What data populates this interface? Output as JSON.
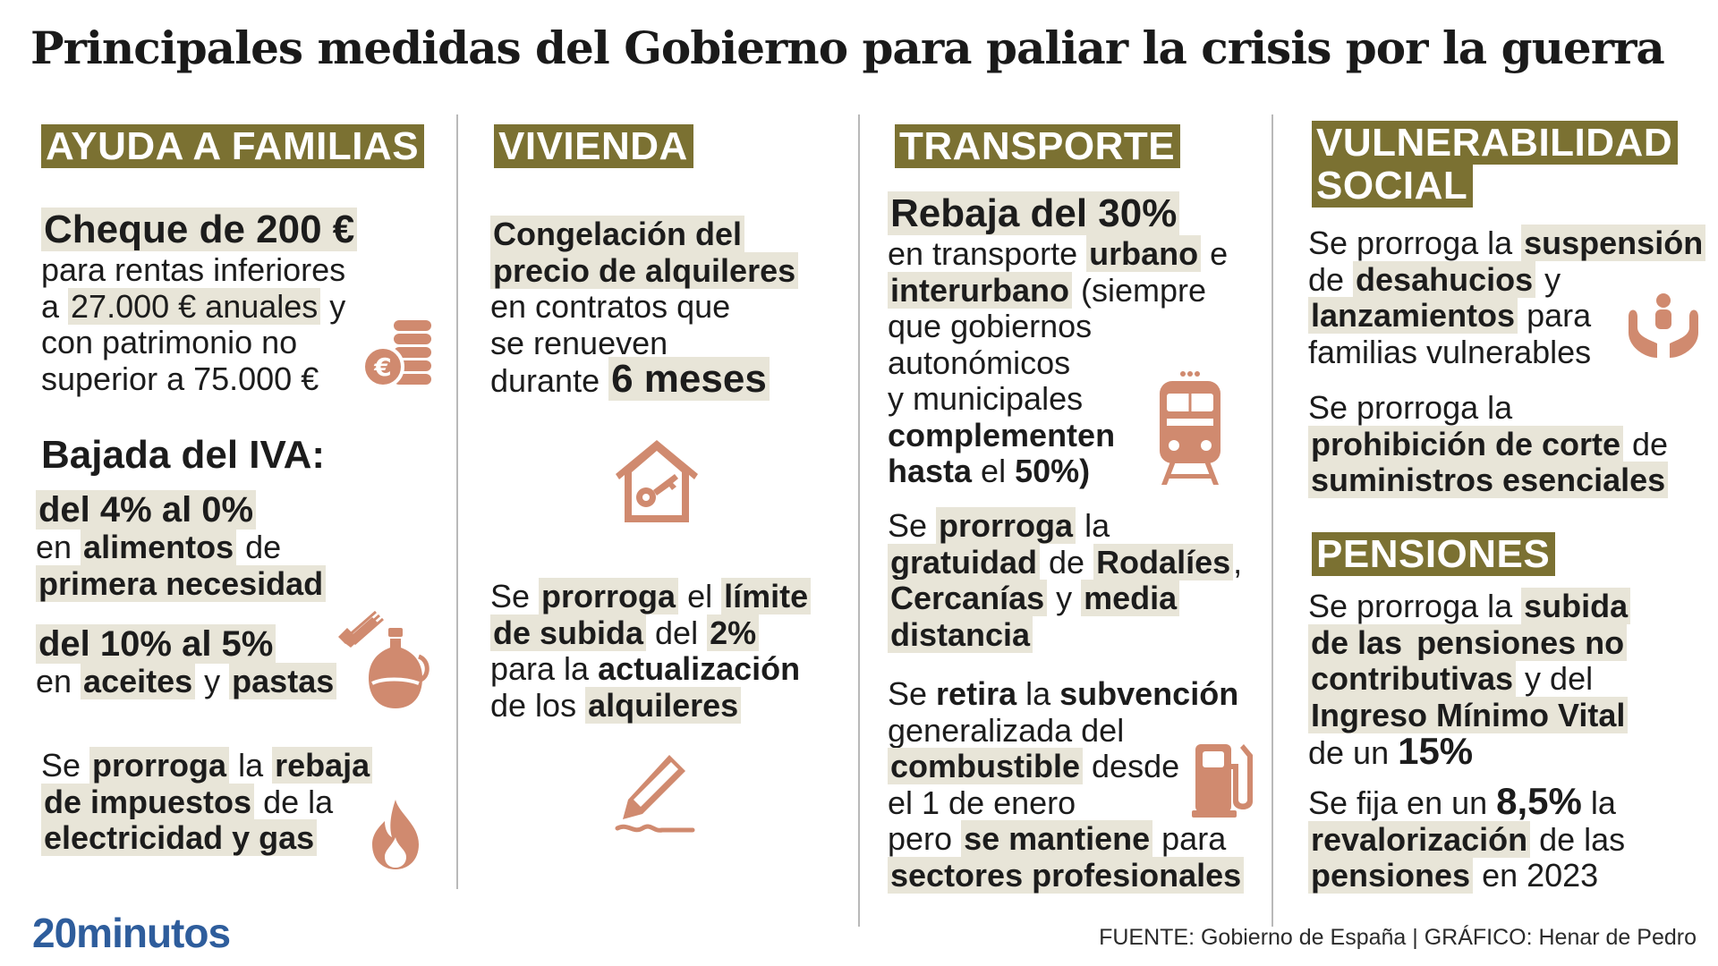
{
  "title": "Principales medidas del Gobierno para paliar la crisis por la guerra",
  "sections": {
    "familias": {
      "header": "AYUDA A FAMILIAS",
      "cheque": {
        "heading": "Cheque de 200 €",
        "l1": "para rentas inferiores",
        "l2a": "a ",
        "l2b": "27.000 € anuales",
        "l2c": " y",
        "l3": "con patrimonio no",
        "l4": "superior a 75.000 €"
      },
      "iva_heading": "Bajada del IVA:",
      "iva1": {
        "range": "del 4% al 0%",
        "l2a": "en ",
        "l2b": "alimentos",
        "l2c": " de",
        "l3": "primera necesidad"
      },
      "iva2": {
        "range": "del 10% al 5%",
        "l2a": "en ",
        "l2b": "aceites",
        "l2c": " y ",
        "l2d": "pastas"
      },
      "energia": {
        "l1a": "Se ",
        "l1b": "prorroga",
        "l1c": " la ",
        "l1d": "rebaja",
        "l2a": "de impuestos",
        "l2b": " de la",
        "l3": "electricidad y gas"
      }
    },
    "vivienda": {
      "header": "VIVIENDA",
      "congelacion": {
        "l1": "Congelación del",
        "l2": "precio de alquileres",
        "l3": "en contratos que",
        "l4": "se renueven",
        "l5a": "durante ",
        "l5b": "6 meses"
      },
      "limite": {
        "l1a": "Se ",
        "l1b": "prorroga",
        "l1c": " el ",
        "l1d": "límite",
        "l2a": "de subida",
        "l2b": " del ",
        "l2c": "2%",
        "l3a": "para la ",
        "l3b": "actualización",
        "l4a": "de los ",
        "l4b": "alquileres"
      }
    },
    "transporte": {
      "header": "TRANSPORTE",
      "rebaja": {
        "heading": "Rebaja del 30%",
        "l1a": "en transporte ",
        "l1b": "urbano",
        "l1c": " e",
        "l2a": "interurbano",
        "l2b": " (siempre",
        "l3": "que gobiernos",
        "l4": "autonómicos",
        "l5": "y municipales",
        "l6": "complementen",
        "l7a": "hasta",
        "l7b": " el ",
        "l7c": "50%)"
      },
      "gratuidad": {
        "l1a": "Se ",
        "l1b": "prorroga",
        "l1c": " la",
        "l2a": "gratuidad",
        "l2b": " de ",
        "l2c": "Rodalíes",
        "l3a": "Cercanías",
        "l3b": " y ",
        "l3c": "media",
        "l4": "distancia"
      },
      "combustible": {
        "l1a": "Se ",
        "l1b": "retira",
        "l1c": " la ",
        "l1d": "subvención",
        "l2": "generalizada del",
        "l3a": "combustible",
        "l3b": " desde",
        "l4": "el 1 de enero",
        "l5a": "pero ",
        "l5b": "se mantiene",
        "l5c": " para",
        "l6": "sectores profesionales"
      }
    },
    "vulnerabilidad": {
      "header_l1": "VULNERABILIDAD",
      "header_l2": "SOCIAL",
      "desahucios": {
        "l1a": "Se prorroga la ",
        "l1b": "suspensión",
        "l2a": "de ",
        "l2b": "desahucios",
        "l2c": " y",
        "l3a": "lanzamientos",
        "l3b": " para",
        "l4": "familias vulnerables"
      },
      "suministros": {
        "l1": "Se prorroga la",
        "l2a": "prohibición de corte",
        "l2b": " de",
        "l3": "suministros esenciales"
      }
    },
    "pensiones": {
      "header": "PENSIONES",
      "subida": {
        "l1a": "Se prorroga la ",
        "l1b": "subida",
        "l2a": "de las ",
        "l2b": "pensiones no",
        "l3a": "contributivas",
        "l3b": " y del",
        "l4": "Ingreso Mínimo Vital",
        "l5a": "de un ",
        "l5b": "15%"
      },
      "revalorizacion": {
        "l1a": "Se fija en un ",
        "l1b": "8,5%",
        "l1c": " la",
        "l2a": "revalorización",
        "l2b": " de las",
        "l3a": "pensiones",
        "l3b": " en 2023"
      }
    }
  },
  "footer": {
    "logo": "20minutos",
    "source": "FUENTE: Gobierno de España  |  GRÁFICO: Henar de Pedro"
  },
  "colors": {
    "header_bg": "#7b7132",
    "highlight_bg": "#e8e5d8",
    "icon": "#d08a6f",
    "logo": "#2e5d9c"
  }
}
